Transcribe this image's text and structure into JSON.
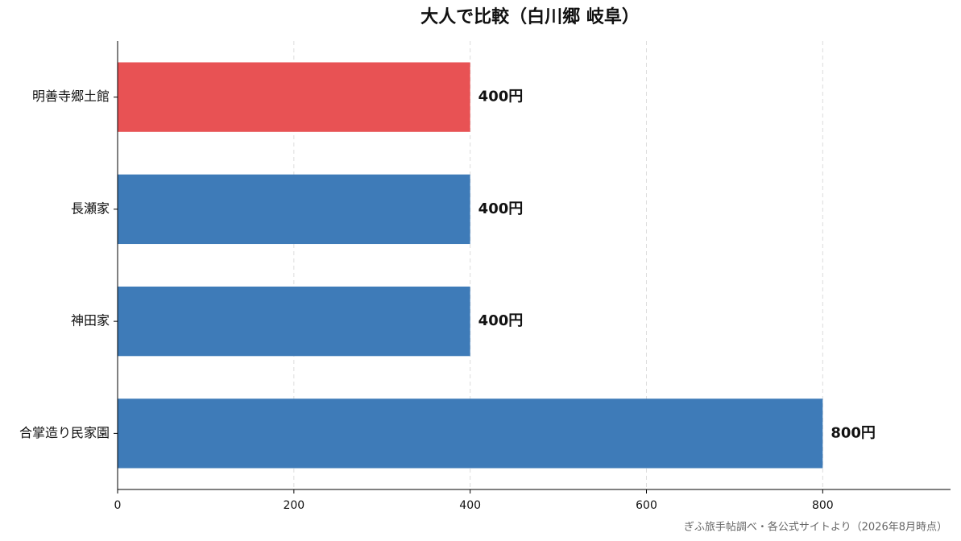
{
  "chart_data": {
    "type": "barh",
    "title": "大人で比較（白川郷 岐阜）",
    "categories": [
      "明善寺郷土館",
      "長瀬家",
      "神田家",
      "合掌造り民家園"
    ],
    "values": [
      400,
      400,
      400,
      800
    ],
    "value_labels": [
      "400円",
      "400円",
      "400円",
      "800円"
    ],
    "colors": [
      "#e85254",
      "#3e7bb8",
      "#3e7bb8",
      "#3e7bb8"
    ],
    "xlim": [
      0,
      945
    ],
    "xticks": [
      0,
      200,
      400,
      600,
      800
    ],
    "grid": true,
    "note": "ぎふ旅手帖調べ・各公式サイトより（2026年8月時点）"
  }
}
